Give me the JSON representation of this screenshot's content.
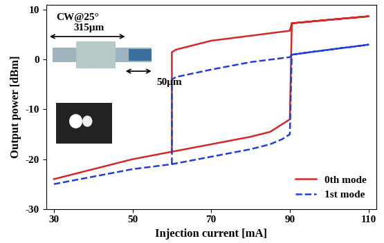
{
  "chart_data": {
    "type": "line",
    "x_label": "Injection current [mA]",
    "y_label": "Output power [dBm]",
    "annotations": [
      "CW@25°",
      "315μm",
      "50μm"
    ],
    "x": [
      30,
      40,
      50,
      60,
      70,
      80,
      85,
      88,
      90,
      90.5,
      100,
      110,
      100,
      90.5,
      90,
      80,
      70,
      61,
      60,
      60
    ],
    "series": [
      {
        "name": "0th mode",
        "color": "#d62728",
        "line_style": "solid",
        "values": [
          -24,
          -22,
          -20,
          -18.5,
          -17,
          -15.5,
          -14.5,
          -13,
          -12,
          7.3,
          8,
          8.7,
          8,
          7.3,
          5.8,
          4.8,
          3.8,
          2,
          1.5,
          -18.5
        ]
      },
      {
        "name": "1st mode",
        "color": "#1f3fd6",
        "line_style": "dashed",
        "values": [
          -25,
          -23.5,
          -22,
          -21,
          -19.5,
          -18,
          -17,
          -16,
          -15,
          1,
          2,
          3,
          2,
          1,
          0.5,
          -0.5,
          -2,
          -3.5,
          -4,
          -21
        ]
      }
    ],
    "xlim": [
      28,
      112
    ],
    "xticks": [
      30,
      50,
      70,
      90,
      110
    ],
    "ylim": [
      -30,
      11
    ],
    "yticks": [
      -30,
      -20,
      -10,
      0,
      10
    ],
    "grid": false,
    "legend": "lower right"
  }
}
